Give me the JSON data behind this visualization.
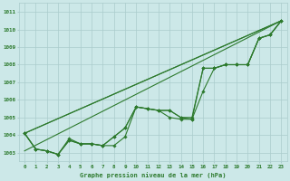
{
  "title": "Graphe pression niveau de la mer (hPa)",
  "bg_color": "#cce8e8",
  "grid_color": "#aacccc",
  "line_color": "#2d7a2d",
  "x_labels": [
    "0",
    "1",
    "2",
    "3",
    "4",
    "5",
    "6",
    "7",
    "8",
    "9",
    "10",
    "11",
    "12",
    "13",
    "14",
    "15",
    "16",
    "17",
    "18",
    "19",
    "20",
    "21",
    "22",
    "23"
  ],
  "ylim": [
    1002.5,
    1011.5
  ],
  "yticks": [
    1003,
    1004,
    1005,
    1006,
    1007,
    1008,
    1009,
    1010,
    1011
  ],
  "series": [
    [
      1004.1,
      1003.2,
      1003.1,
      1002.9,
      1003.8,
      1003.5,
      1003.5,
      1003.4,
      1003.4,
      1003.9,
      1005.6,
      1005.5,
      1005.4,
      1005.0,
      1004.9,
      1004.9,
      1006.5,
      1007.8,
      1008.0,
      1008.0,
      1008.0,
      1009.5,
      1009.7,
      1010.5
    ],
    [
      1004.1,
      1003.2,
      1003.1,
      1002.9,
      1003.7,
      1003.5,
      1003.5,
      1003.4,
      1003.9,
      1004.4,
      1005.6,
      1005.5,
      1005.4,
      1005.4,
      1005.0,
      1005.0,
      1007.8,
      1007.8,
      1008.0,
      1008.0,
      1008.0,
      1009.5,
      1009.7,
      1010.5
    ],
    [
      1004.1,
      1003.2,
      1003.1,
      1002.9,
      1003.7,
      1003.5,
      1003.5,
      1003.4,
      1003.9,
      1004.4,
      1005.6,
      1005.5,
      1005.4,
      1005.4,
      1005.0,
      1004.9,
      1007.8,
      1007.8,
      1008.0,
      1008.0,
      1008.0,
      1009.5,
      1009.7,
      1010.5
    ]
  ],
  "straight_lines": [
    [
      [
        0,
        23
      ],
      [
        1004.1,
        1010.5
      ]
    ],
    [
      [
        0,
        23
      ],
      [
        1004.1,
        1010.5
      ]
    ],
    [
      [
        0,
        23
      ],
      [
        1003.1,
        1010.5
      ]
    ]
  ]
}
